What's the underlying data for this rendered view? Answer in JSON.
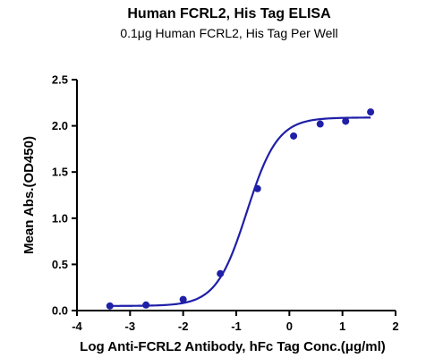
{
  "chart_data": {
    "type": "scatter",
    "title": "Human FCRL2, His Tag ELISA",
    "subtitle": "0.1μg Human FCRL2, His Tag Per Well",
    "xlabel": "Log Anti-FCRL2 Antibody, hFc Tag Conc.(μg/ml)",
    "ylabel": "Mean Abs.(OD450)",
    "xlim": [
      -4,
      2
    ],
    "ylim": [
      0,
      2.5
    ],
    "xticks": [
      -4,
      -3,
      -2,
      -1,
      0,
      1,
      2
    ],
    "yticks": [
      0.0,
      0.5,
      1.0,
      1.5,
      2.0,
      2.5
    ],
    "xtick_labels": [
      "-4",
      "-3",
      "-2",
      "-1",
      "0",
      "1",
      "2"
    ],
    "ytick_labels": [
      "0.0",
      "0.5",
      "1.0",
      "1.5",
      "2.0",
      "2.5"
    ],
    "grid": false,
    "series": [
      {
        "x": [
          -3.38,
          -2.7,
          -2.0,
          -1.3,
          -0.6,
          0.08,
          0.58,
          1.06,
          1.53
        ],
        "y": [
          0.05,
          0.06,
          0.12,
          0.4,
          1.32,
          1.89,
          2.02,
          2.05,
          2.15
        ],
        "color": "#1f1fa8"
      }
    ],
    "fit_curve": {
      "type": "4PL",
      "bottom": 0.05,
      "top": 2.09,
      "logEC50": -0.8,
      "hill": 1.5,
      "x_range": [
        -3.38,
        1.53
      ],
      "color": "#1f1fa8"
    }
  }
}
